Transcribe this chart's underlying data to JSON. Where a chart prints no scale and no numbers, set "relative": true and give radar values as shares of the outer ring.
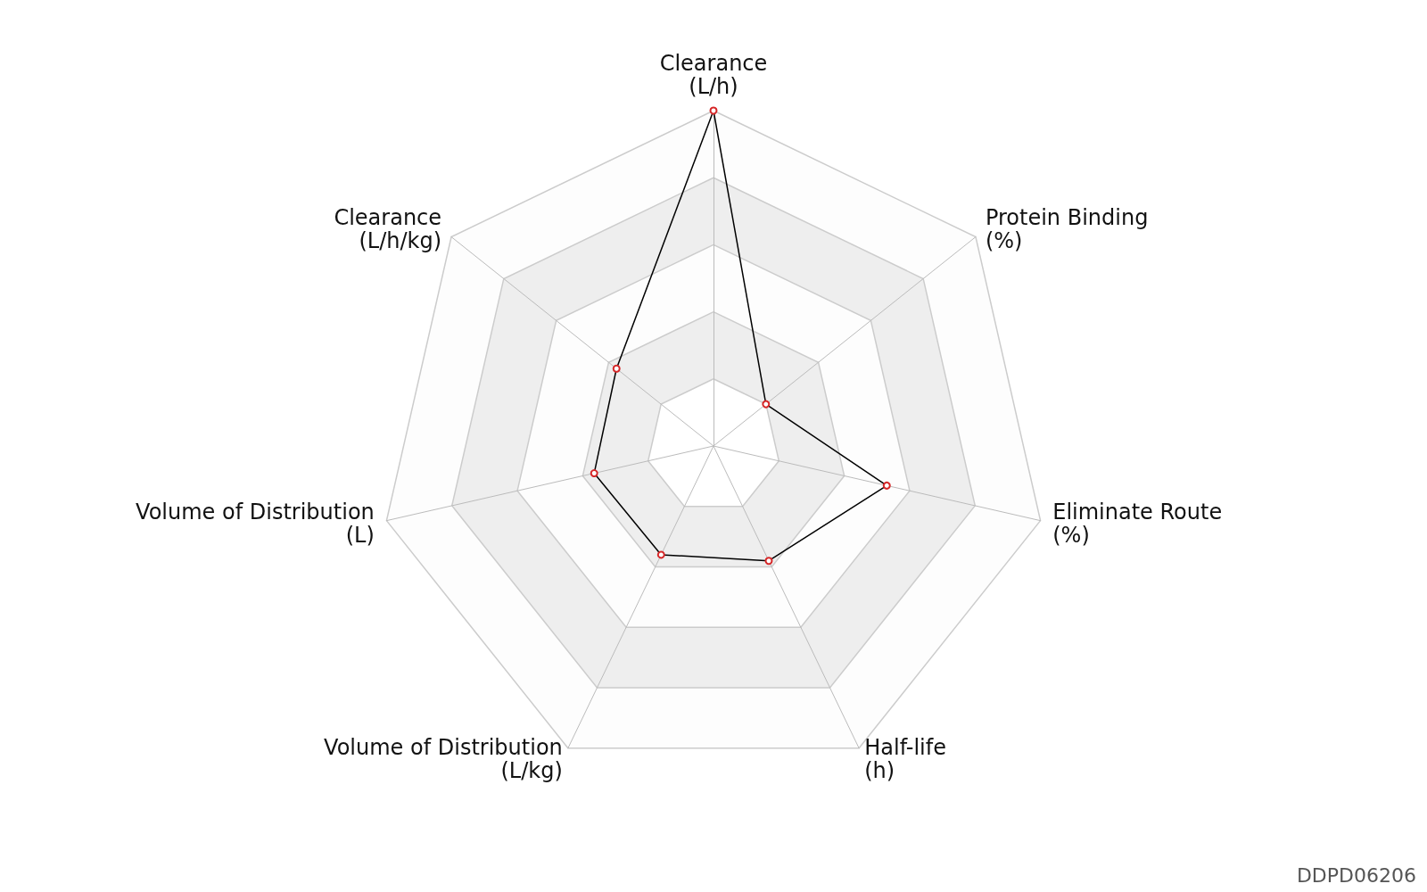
{
  "chart_data": {
    "type": "radar",
    "relative": true,
    "categories": [
      "Clearance (L/h)",
      "Protein Binding (%)",
      "Eliminate Route (%)",
      "Half-life (h)",
      "Volume of Distribution (L/kg)",
      "Volume of Distribution (L)",
      "Clearance (L/h/kg)"
    ],
    "series": [
      {
        "color": "#000000",
        "values": [
          1.0,
          0.2,
          0.53,
          0.38,
          0.36,
          0.365,
          0.37
        ]
      }
    ],
    "marker": "circle",
    "grid": true,
    "annotations": [
      "DDPD06206"
    ]
  }
}
